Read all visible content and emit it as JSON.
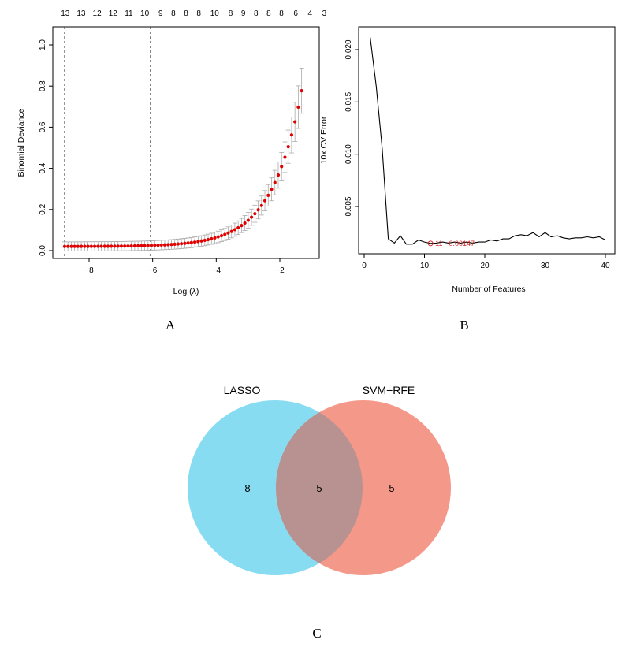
{
  "chart_data": [
    {
      "panel": "A",
      "type": "line",
      "xlabel": "Log (λ)",
      "ylabel": "Binomial Deviance",
      "xlim": [
        -8.85,
        -1.1
      ],
      "ylim": [
        0,
        1.04
      ],
      "x_ticks": [
        -8,
        -6,
        -4,
        -2
      ],
      "y_ticks": [
        0.0,
        0.2,
        0.4,
        0.6,
        0.8,
        1.0
      ],
      "y_tick_labels": [
        "0.0",
        "0.2",
        "0.4",
        "0.6",
        "0.8",
        "1.0"
      ],
      "x_tick_labels": [
        "−8",
        "−6",
        "−4",
        "−2"
      ],
      "top_axis_labels": [
        "13",
        "13",
        "12",
        "12",
        "11",
        "10",
        "9",
        "8",
        "8",
        "8",
        "10",
        "8",
        "9",
        "8",
        "8",
        "8",
        "6",
        "4",
        "3"
      ],
      "top_axis_x": [
        -8.75,
        -8.25,
        -7.75,
        -7.25,
        -6.75,
        -6.25,
        -5.75,
        -5.35,
        -4.95,
        -4.55,
        -4.05,
        -3.55,
        -3.15,
        -2.75,
        -2.35,
        -1.95,
        -1.5,
        -1.05,
        -0.6
      ],
      "vlines_x": [
        -8.77,
        -6.07
      ],
      "series": [
        {
          "marker_color": "#e00000",
          "errorbar_color": "#aaaaaa",
          "x_start": -8.77,
          "x_step": 0.105,
          "points": 72,
          "curve": "exponential rise",
          "y_min": 0.02,
          "y_max": 0.95
        }
      ]
    },
    {
      "panel": "B",
      "type": "line",
      "xlabel": "Number of Features",
      "ylabel": "10x CV Error",
      "xlim": [
        0,
        41
      ],
      "ylim": [
        0.0005,
        0.0225
      ],
      "x_ticks": [
        0,
        10,
        20,
        30,
        40
      ],
      "y_ticks": [
        0.005,
        0.01,
        0.015,
        0.02
      ],
      "y_tick_labels": [
        "0.005",
        "0.010",
        "0.015",
        "0.020"
      ],
      "x_tick_labels": [
        "0",
        "10",
        "20",
        "30",
        "40"
      ],
      "series": [
        {
          "color": "#000000",
          "x": [
            1,
            2,
            3,
            4,
            5,
            6,
            7,
            8,
            9,
            10,
            11,
            12,
            13,
            14,
            15,
            16,
            17,
            18,
            19,
            20,
            21,
            22,
            23,
            24,
            25,
            26,
            27,
            28,
            29,
            30,
            31,
            32,
            33,
            34,
            35,
            36,
            37,
            38,
            39,
            40
          ],
          "y": [
            0.0212,
            0.0165,
            0.0105,
            0.0019,
            0.0015,
            0.0022,
            0.0014,
            0.0014,
            0.0018,
            0.0016,
            0.00147,
            0.0015,
            0.0016,
            0.0015,
            0.0016,
            0.0015,
            0.0016,
            0.0015,
            0.0016,
            0.0016,
            0.0018,
            0.0017,
            0.0019,
            0.0019,
            0.0022,
            0.0023,
            0.0022,
            0.0025,
            0.0021,
            0.0025,
            0.0021,
            0.0022,
            0.002,
            0.0019,
            0.002,
            0.002,
            0.0021,
            0.002,
            0.0021,
            0.0018
          ]
        }
      ],
      "annotation": {
        "text": "11 - 0.00147",
        "x": 11,
        "y": 0.00147,
        "color": "#d62728"
      }
    },
    {
      "panel": "C",
      "type": "venn",
      "sets": [
        {
          "name": "LASSO",
          "only": 8,
          "color": "#87dcf2"
        },
        {
          "name": "SVM−RFE",
          "only": 5,
          "color": "#f4998a"
        }
      ],
      "intersection": 5,
      "overlap_color": "#b79290"
    }
  ],
  "panels": {
    "a": "A",
    "b": "B",
    "c": "C"
  }
}
